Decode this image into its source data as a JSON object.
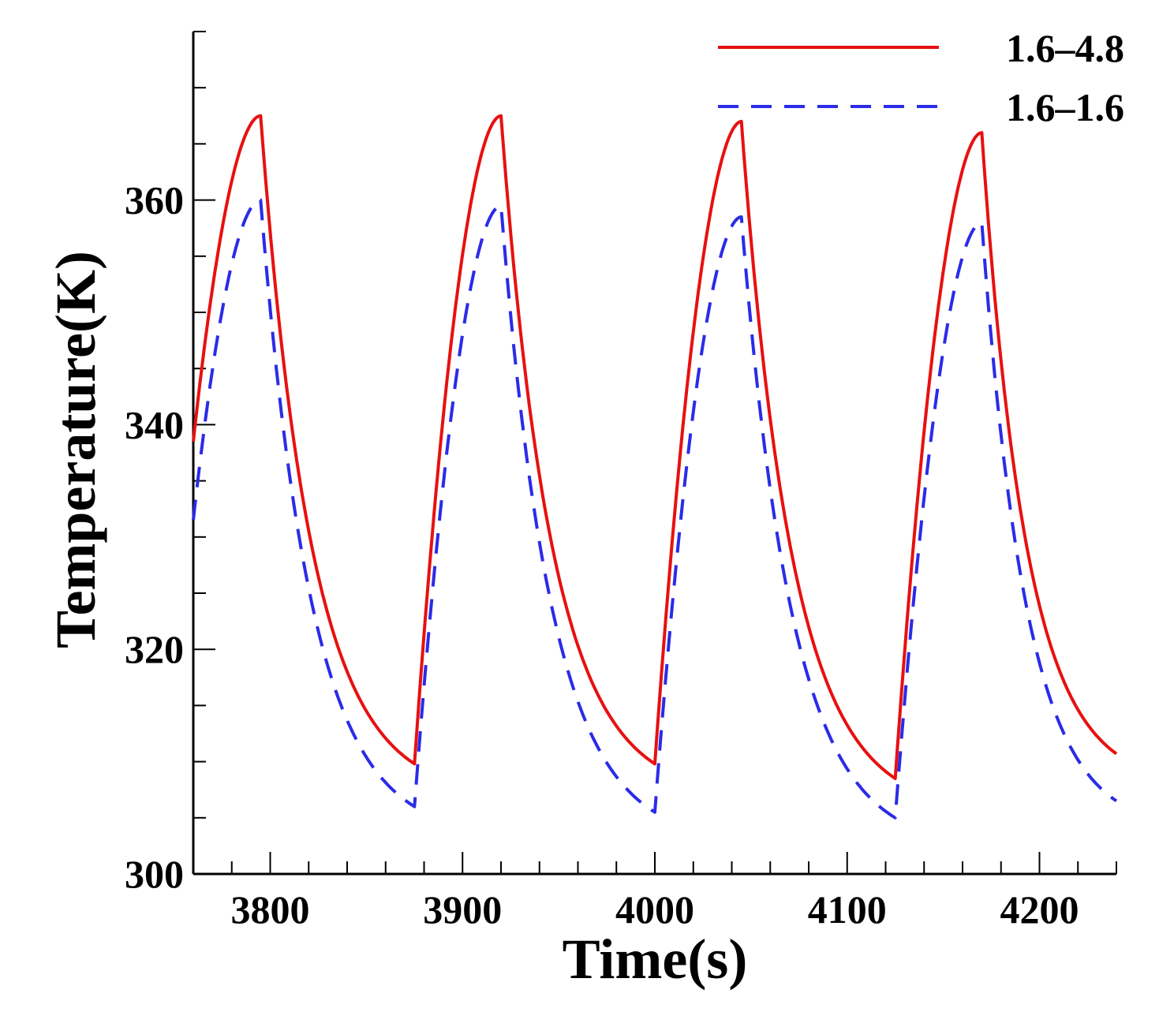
{
  "chart_data": {
    "type": "line",
    "title": "",
    "xlabel": "Time(s)",
    "ylabel": "Temperature(K)",
    "xlim": [
      3760,
      4240
    ],
    "ylim": [
      300,
      375
    ],
    "xticks_major": [
      3800,
      3900,
      4000,
      4100,
      4200
    ],
    "xtick_labels": [
      "3800",
      "3900",
      "4000",
      "4100",
      "4200"
    ],
    "xticks_minor_step": 20,
    "yticks_major": [
      300,
      320,
      340,
      360
    ],
    "ytick_labels": [
      "300",
      "320",
      "340",
      "360"
    ],
    "yticks_minor_step": 5,
    "grid": false,
    "legend_position": "top-right",
    "series": [
      {
        "name": "1.6–4.8",
        "color": "#e81010",
        "line_style": "solid",
        "cycles": [
          {
            "start": 3760,
            "peak_time": 3795,
            "peak": 367.5,
            "trough_time": 3875,
            "trough": 309.8,
            "start_value": 338.5
          },
          {
            "start": 3875,
            "peak_time": 3920,
            "peak": 367.5,
            "trough_time": 4000,
            "trough": 309.8
          },
          {
            "start": 4000,
            "peak_time": 4045,
            "peak": 367.0,
            "trough_time": 4125,
            "trough": 308.5
          },
          {
            "start": 4125,
            "peak_time": 4170,
            "peak": 366.0,
            "end_time": 4240,
            "end_value": 310.7
          }
        ]
      },
      {
        "name": "1.6–1.6",
        "color": "#2b2be8",
        "line_style": "dashed",
        "cycles": [
          {
            "start": 3760,
            "peak_time": 3795,
            "peak": 360.0,
            "trough_time": 3875,
            "trough": 306.0,
            "start_value": 331.5
          },
          {
            "start": 3875,
            "peak_time": 3920,
            "peak": 359.5,
            "trough_time": 4000,
            "trough": 305.5
          },
          {
            "start": 4000,
            "peak_time": 4045,
            "peak": 358.5,
            "trough_time": 4125,
            "trough": 305.0
          },
          {
            "start": 4125,
            "peak_time": 4170,
            "peak": 358.0,
            "end_time": 4240,
            "end_value": 306.5
          }
        ]
      }
    ]
  }
}
